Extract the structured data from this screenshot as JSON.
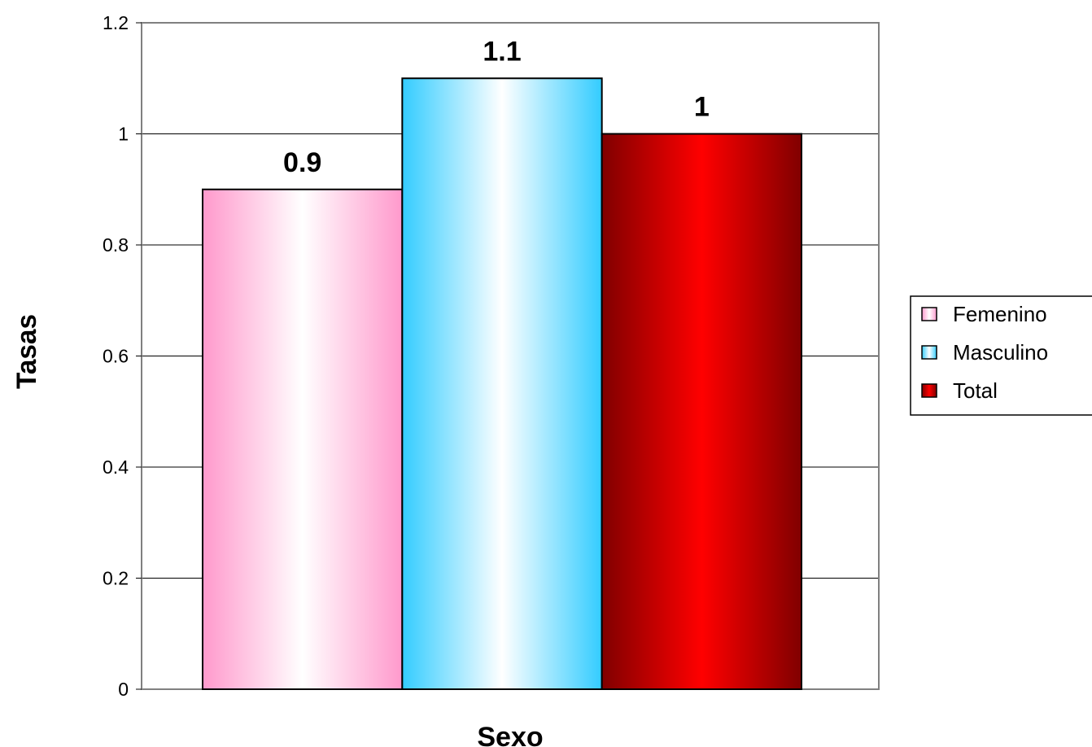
{
  "chart_data": {
    "type": "bar",
    "title": "",
    "xlabel": "Sexo",
    "ylabel": "Tasas",
    "ylim": [
      0,
      1.2
    ],
    "yticks": [
      0,
      0.2,
      0.4,
      0.6,
      0.8,
      1,
      1.2
    ],
    "ytick_labels": [
      "0",
      "0.2",
      "0.4",
      "0.6",
      "0.8",
      "1",
      "1.2"
    ],
    "grid": true,
    "legend_position": "right",
    "series": [
      {
        "name": "Femenino",
        "value": 0.9,
        "label": "0.9",
        "color": "#ff99cc",
        "highlight": "#ffffff"
      },
      {
        "name": "Masculino",
        "value": 1.1,
        "label": "1.1",
        "color": "#33ccff",
        "highlight": "#ffffff"
      },
      {
        "name": "Total",
        "value": 1,
        "label": "1",
        "color": "#800000",
        "highlight": "#ff0000"
      }
    ]
  }
}
